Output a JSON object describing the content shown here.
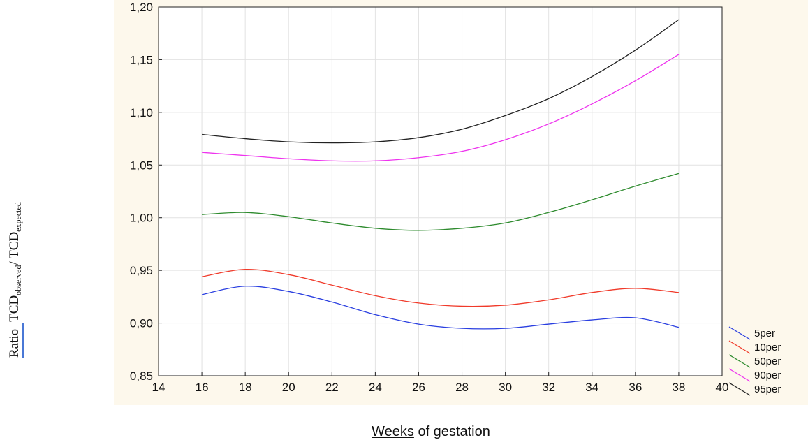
{
  "chart_data": {
    "type": "line",
    "title": "",
    "xlabel": {
      "part1": "Weeks",
      "part2": " of gestation"
    },
    "ylabel": {
      "ratio": "Ratio",
      "tcd1": "TCD",
      "sub1": "observed",
      "slash": "/ ",
      "tcd2": "TCD",
      "sub2": "expected"
    },
    "xlim": [
      14,
      40
    ],
    "ylim": [
      0.85,
      1.2
    ],
    "xticks": [
      14,
      16,
      18,
      20,
      22,
      24,
      26,
      28,
      30,
      32,
      34,
      36,
      38,
      40
    ],
    "yticks": [
      0.85,
      0.9,
      0.95,
      1.0,
      1.05,
      1.1,
      1.15,
      1.2
    ],
    "ytick_labels": [
      "0,85",
      "0,90",
      "0,95",
      "1,00",
      "1,05",
      "1,10",
      "1,15",
      "1,20"
    ],
    "grid": true,
    "legend_position": "bottom-right",
    "x": [
      16,
      18,
      20,
      22,
      24,
      26,
      28,
      30,
      32,
      34,
      36,
      38
    ],
    "series": [
      {
        "name": "5per",
        "color": "#2a3fe0",
        "values": [
          0.927,
          0.935,
          0.93,
          0.92,
          0.908,
          0.899,
          0.895,
          0.895,
          0.899,
          0.903,
          0.905,
          0.896
        ]
      },
      {
        "name": "10per",
        "color": "#f03a2a",
        "values": [
          0.944,
          0.951,
          0.946,
          0.936,
          0.926,
          0.919,
          0.916,
          0.917,
          0.922,
          0.929,
          0.933,
          0.929
        ]
      },
      {
        "name": "50per",
        "color": "#2e8b2e",
        "values": [
          1.003,
          1.005,
          1.001,
          0.995,
          0.99,
          0.988,
          0.99,
          0.995,
          1.005,
          1.017,
          1.03,
          1.042
        ]
      },
      {
        "name": "90per",
        "color": "#ee33ee",
        "values": [
          1.062,
          1.059,
          1.056,
          1.054,
          1.054,
          1.057,
          1.063,
          1.074,
          1.089,
          1.108,
          1.13,
          1.155
        ]
      },
      {
        "name": "95per",
        "color": "#222222",
        "values": [
          1.079,
          1.075,
          1.072,
          1.071,
          1.072,
          1.076,
          1.084,
          1.097,
          1.113,
          1.134,
          1.159,
          1.188
        ]
      }
    ]
  }
}
